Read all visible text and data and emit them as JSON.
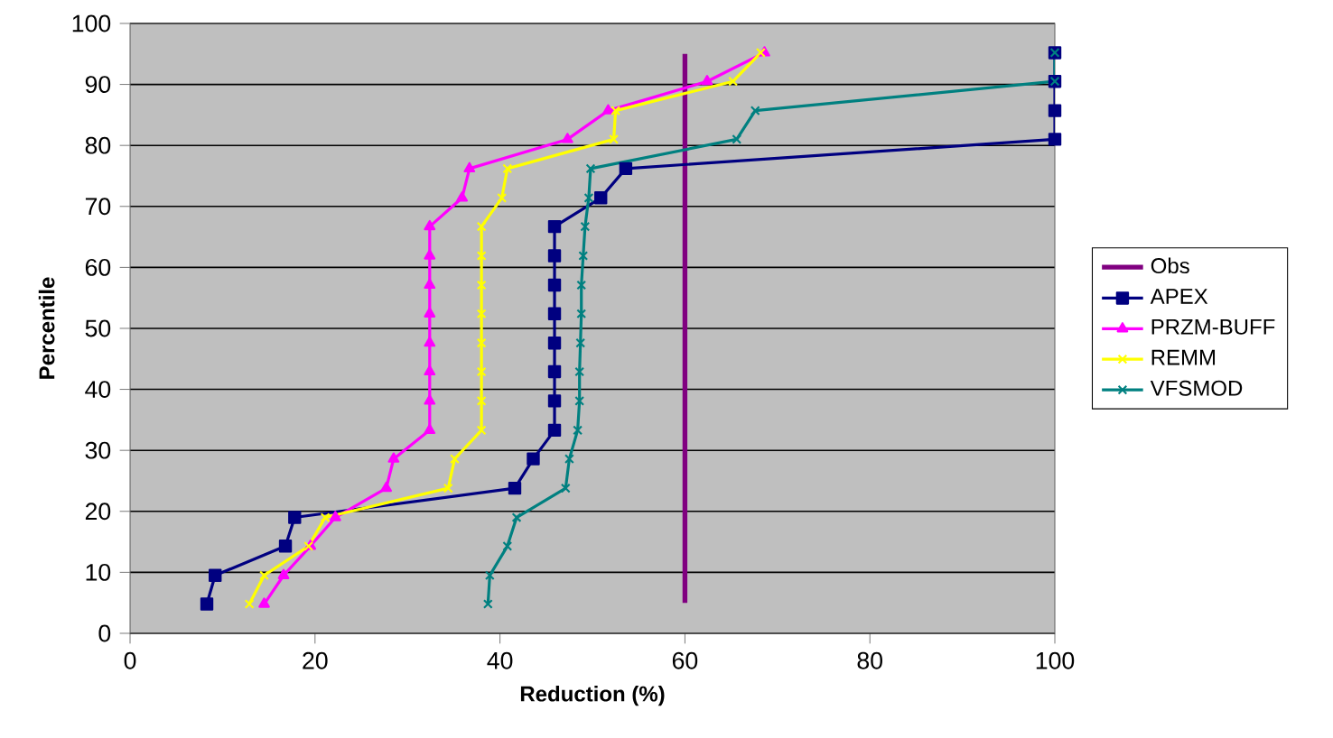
{
  "chart_data": {
    "type": "line",
    "xlabel": "Reduction (%)",
    "ylabel": "Percentile",
    "xlim": [
      0,
      100
    ],
    "ylim": [
      0,
      100
    ],
    "xticks": [
      0,
      20,
      40,
      60,
      80,
      100
    ],
    "yticks": [
      0,
      10,
      20,
      30,
      40,
      50,
      60,
      70,
      80,
      90,
      100
    ],
    "grid": "y",
    "legend": "right",
    "series": [
      {
        "name": "Obs",
        "color": "#800080",
        "marker": "none",
        "x": [
          60,
          60
        ],
        "values": [
          5,
          95
        ]
      },
      {
        "name": "APEX",
        "color": "#000080",
        "marker": "square",
        "x": [
          8.3,
          9.2,
          16.8,
          17.8,
          41.6,
          43.6,
          45.9,
          45.9,
          45.9,
          45.9,
          45.9,
          45.9,
          45.9,
          45.9,
          50.9,
          53.6,
          100,
          100,
          100,
          100
        ],
        "values": [
          4.8,
          9.5,
          14.3,
          19,
          23.8,
          28.6,
          33.3,
          38.1,
          42.9,
          47.6,
          52.4,
          57.1,
          61.9,
          66.7,
          71.4,
          76.2,
          81,
          85.7,
          90.5,
          95.2
        ]
      },
      {
        "name": "PRZM-BUFF",
        "color": "#ff00ff",
        "marker": "triangle",
        "x": [
          14.5,
          16.6,
          19.5,
          22.2,
          27.7,
          28.5,
          32.4,
          32.4,
          32.4,
          32.4,
          32.4,
          32.4,
          32.4,
          32.4,
          35.9,
          36.7,
          47.3,
          51.7,
          62.4,
          68.6
        ],
        "values": [
          4.8,
          9.5,
          14.3,
          19,
          23.8,
          28.6,
          33.3,
          38.1,
          42.9,
          47.6,
          52.4,
          57.1,
          61.9,
          66.7,
          71.4,
          76.2,
          81,
          85.7,
          90.5,
          95.2
        ]
      },
      {
        "name": "REMM",
        "color": "#ffff00",
        "marker": "cross",
        "x": [
          12.9,
          14.5,
          19.3,
          21.1,
          34.4,
          35.1,
          38.0,
          38.0,
          38.0,
          38.0,
          38.0,
          38.0,
          38.0,
          38.0,
          40.2,
          40.8,
          52.3,
          52.5,
          65.2,
          68.2
        ],
        "values": [
          4.8,
          9.5,
          14.3,
          19,
          23.8,
          28.6,
          33.3,
          38.1,
          42.9,
          47.6,
          52.4,
          57.1,
          61.9,
          66.7,
          71.4,
          76.2,
          81,
          85.7,
          90.5,
          95.2
        ]
      },
      {
        "name": "VFSMOD",
        "color": "#008080",
        "marker": "cross",
        "x": [
          38.7,
          38.9,
          40.8,
          41.8,
          47.1,
          47.5,
          48.4,
          48.6,
          48.6,
          48.7,
          48.8,
          48.8,
          49.0,
          49.2,
          49.6,
          49.8,
          65.6,
          67.6,
          100,
          100
        ],
        "values": [
          4.8,
          9.5,
          14.3,
          19,
          23.8,
          28.6,
          33.3,
          38.1,
          42.9,
          47.6,
          52.4,
          57.1,
          61.9,
          66.7,
          71.4,
          76.2,
          81,
          85.7,
          90.5,
          95.2
        ]
      }
    ]
  }
}
